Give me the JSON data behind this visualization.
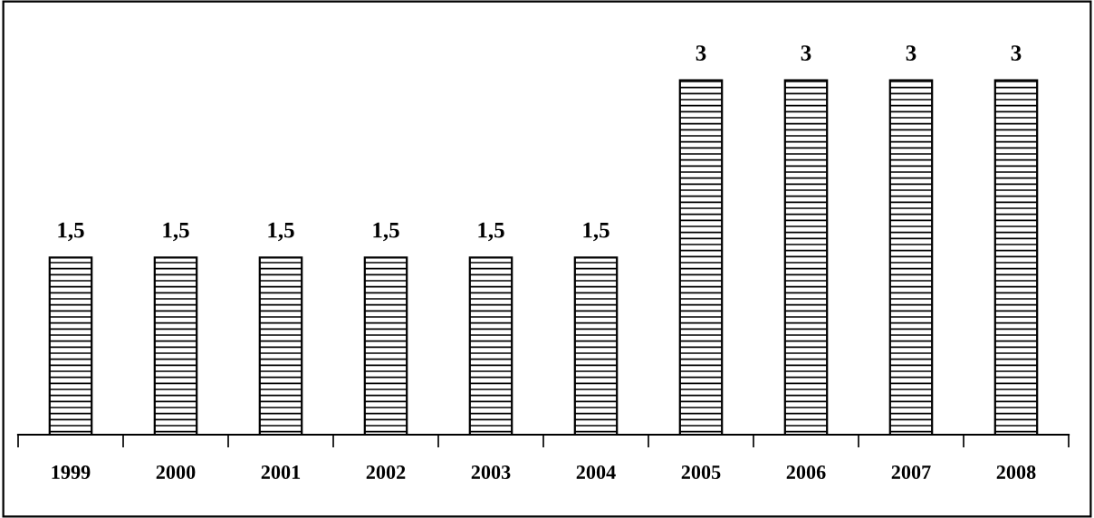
{
  "chart_data": {
    "type": "bar",
    "categories": [
      "1999",
      "2000",
      "2001",
      "2002",
      "2003",
      "2004",
      "2005",
      "2006",
      "2007",
      "2008"
    ],
    "values": [
      1.5,
      1.5,
      1.5,
      1.5,
      1.5,
      1.5,
      3,
      3,
      3,
      3
    ],
    "value_labels": [
      "1,5",
      "1,5",
      "1,5",
      "1,5",
      "1,5",
      "1,5",
      "3",
      "3",
      "3",
      "3"
    ],
    "color": "#000000",
    "grid": false,
    "legend": false
  }
}
